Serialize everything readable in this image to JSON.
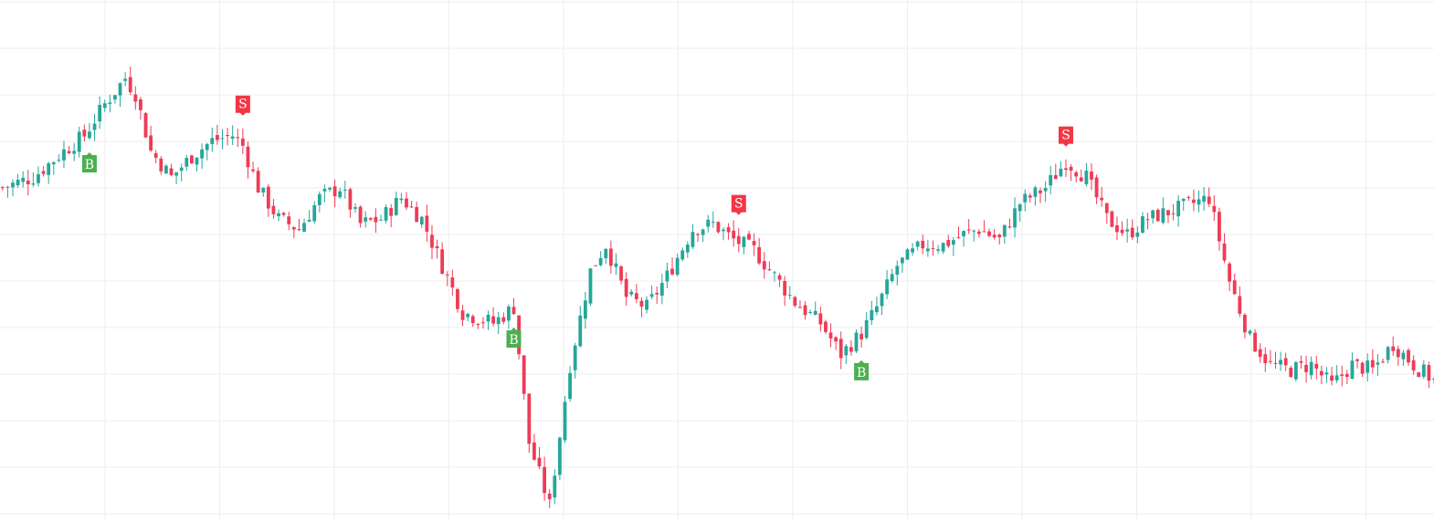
{
  "chart_data": {
    "type": "candlestick",
    "title": "",
    "xlabel": "",
    "ylabel": "",
    "ylim": [
      0,
      100
    ],
    "grid": true,
    "colors": {
      "up": "#26a69a",
      "down": "#ef3b56",
      "grid": "#eeeeee",
      "buy_marker": "#4caf50",
      "sell_marker": "#f23645"
    },
    "candles": [],
    "signals": [
      {
        "type": "buy",
        "label": "B",
        "index": 17
      },
      {
        "type": "sell",
        "label": "S",
        "index": 47
      },
      {
        "type": "buy",
        "label": "B",
        "index": 100
      },
      {
        "type": "sell",
        "label": "S",
        "index": 144
      },
      {
        "type": "buy",
        "label": "B",
        "index": 168
      },
      {
        "type": "sell",
        "label": "S",
        "index": 208
      }
    ]
  }
}
